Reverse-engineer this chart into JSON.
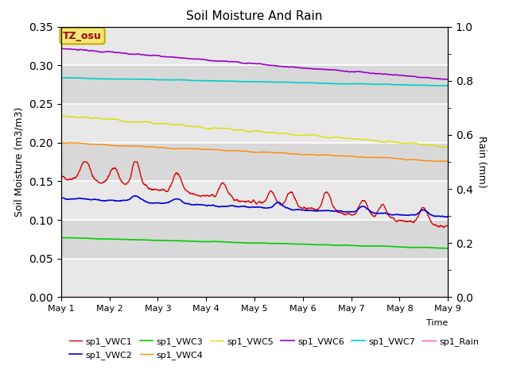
{
  "title": "Soil Moisture And Rain",
  "xlabel": "Time",
  "ylabel_left": "Soil Moisture (m3/m3)",
  "ylabel_right": "Rain (mm)",
  "ylim_left": [
    0.0,
    0.35
  ],
  "ylim_right": [
    0.0,
    1.0
  ],
  "xtick_labels": [
    "May 1",
    "May 2",
    "May 3",
    "May 4",
    "May 5",
    "May 6",
    "May 7",
    "May 8",
    "May 9"
  ],
  "annotation": "TZ_osu",
  "annotation_color": "#aa0000",
  "annotation_facecolor": "#f0e878",
  "annotation_edgecolor": "#c8a800",
  "background_color": "#d8d8d8",
  "band_color_light": "#e8e8e8",
  "series": {
    "sp1_VWC1": {
      "color": "#dd0000",
      "linewidth": 1.0
    },
    "sp1_VWC2": {
      "color": "#0000dd",
      "linewidth": 1.2
    },
    "sp1_VWC3": {
      "color": "#00cc00",
      "linewidth": 1.2
    },
    "sp1_VWC4": {
      "color": "#ff8800",
      "linewidth": 1.0
    },
    "sp1_VWC5": {
      "color": "#dddd00",
      "linewidth": 1.0
    },
    "sp1_VWC6": {
      "color": "#9900cc",
      "linewidth": 1.2
    },
    "sp1_VWC7": {
      "color": "#00cccc",
      "linewidth": 1.2
    },
    "sp1_Rain": {
      "color": "#ff44cc",
      "linewidth": 1.0
    }
  },
  "legend_order": [
    "sp1_VWC1",
    "sp1_VWC2",
    "sp1_VWC3",
    "sp1_VWC4",
    "sp1_VWC5",
    "sp1_VWC6",
    "sp1_VWC7",
    "sp1_Rain"
  ]
}
